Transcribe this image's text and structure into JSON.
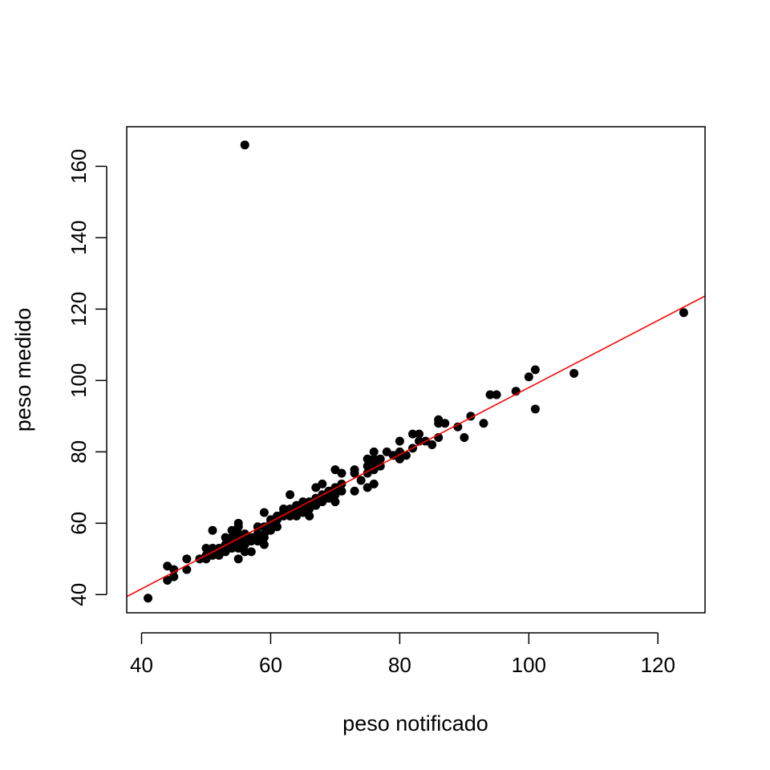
{
  "chart_data": {
    "type": "scatter",
    "title": "",
    "xlabel": "peso notificado",
    "ylabel": "peso medido",
    "xlim": [
      37.7,
      127.3
    ],
    "ylim": [
      34.9,
      171.1
    ],
    "xticks": [
      40,
      60,
      80,
      100,
      120
    ],
    "yticks": [
      40,
      60,
      80,
      100,
      120,
      140,
      160
    ],
    "grid": false,
    "legend": "none",
    "point_color": "#000000",
    "fit_line": {
      "color": "#ff0000",
      "intercept": 4.0,
      "slope": 0.94
    },
    "points": [
      [
        41,
        39
      ],
      [
        44,
        44
      ],
      [
        44,
        48
      ],
      [
        45,
        45
      ],
      [
        45,
        47
      ],
      [
        47,
        47
      ],
      [
        47,
        50
      ],
      [
        49,
        50
      ],
      [
        50,
        50
      ],
      [
        50,
        51
      ],
      [
        50,
        53
      ],
      [
        51,
        51
      ],
      [
        51,
        52
      ],
      [
        51,
        53
      ],
      [
        51,
        58
      ],
      [
        52,
        51
      ],
      [
        52,
        52
      ],
      [
        52,
        53
      ],
      [
        53,
        52
      ],
      [
        53,
        53
      ],
      [
        53,
        54
      ],
      [
        53,
        56
      ],
      [
        54,
        53
      ],
      [
        54,
        54
      ],
      [
        54,
        55
      ],
      [
        54,
        56
      ],
      [
        54,
        58
      ],
      [
        55,
        50
      ],
      [
        55,
        53
      ],
      [
        55,
        55
      ],
      [
        55,
        56
      ],
      [
        55,
        57
      ],
      [
        55,
        59
      ],
      [
        55,
        60
      ],
      [
        56,
        52
      ],
      [
        56,
        54
      ],
      [
        56,
        56
      ],
      [
        56,
        57
      ],
      [
        56,
        166
      ],
      [
        57,
        52
      ],
      [
        57,
        55
      ],
      [
        57,
        56
      ],
      [
        58,
        55
      ],
      [
        58,
        57
      ],
      [
        58,
        59
      ],
      [
        59,
        54
      ],
      [
        59,
        56
      ],
      [
        59,
        57
      ],
      [
        59,
        59
      ],
      [
        59,
        63
      ],
      [
        60,
        58
      ],
      [
        60,
        60
      ],
      [
        60,
        61
      ],
      [
        61,
        59
      ],
      [
        61,
        61
      ],
      [
        61,
        62
      ],
      [
        62,
        62
      ],
      [
        62,
        63
      ],
      [
        62,
        64
      ],
      [
        63,
        62
      ],
      [
        63,
        64
      ],
      [
        63,
        68
      ],
      [
        64,
        62
      ],
      [
        64,
        63
      ],
      [
        64,
        65
      ],
      [
        65,
        63
      ],
      [
        65,
        64
      ],
      [
        65,
        66
      ],
      [
        66,
        62
      ],
      [
        66,
        64
      ],
      [
        66,
        65
      ],
      [
        66,
        66
      ],
      [
        67,
        65
      ],
      [
        67,
        67
      ],
      [
        67,
        70
      ],
      [
        68,
        66
      ],
      [
        68,
        68
      ],
      [
        68,
        71
      ],
      [
        69,
        67
      ],
      [
        69,
        69
      ],
      [
        70,
        66
      ],
      [
        70,
        68
      ],
      [
        70,
        70
      ],
      [
        70,
        75
      ],
      [
        71,
        69
      ],
      [
        71,
        71
      ],
      [
        71,
        74
      ],
      [
        73,
        69
      ],
      [
        73,
        74
      ],
      [
        73,
        75
      ],
      [
        74,
        72
      ],
      [
        75,
        70
      ],
      [
        75,
        74
      ],
      [
        75,
        76
      ],
      [
        75,
        78
      ],
      [
        76,
        71
      ],
      [
        76,
        75
      ],
      [
        76,
        77
      ],
      [
        76,
        78
      ],
      [
        76,
        80
      ],
      [
        77,
        76
      ],
      [
        77,
        78
      ],
      [
        78,
        80
      ],
      [
        79,
        79
      ],
      [
        80,
        78
      ],
      [
        80,
        80
      ],
      [
        80,
        83
      ],
      [
        81,
        79
      ],
      [
        82,
        81
      ],
      [
        82,
        85
      ],
      [
        83,
        83
      ],
      [
        83,
        85
      ],
      [
        84,
        83
      ],
      [
        85,
        82
      ],
      [
        86,
        84
      ],
      [
        86,
        88
      ],
      [
        86,
        89
      ],
      [
        87,
        88
      ],
      [
        89,
        87
      ],
      [
        90,
        84
      ],
      [
        91,
        90
      ],
      [
        93,
        88
      ],
      [
        94,
        96
      ],
      [
        95,
        96
      ],
      [
        98,
        97
      ],
      [
        100,
        101
      ],
      [
        101,
        92
      ],
      [
        101,
        103
      ],
      [
        107,
        102
      ],
      [
        124,
        119
      ]
    ]
  }
}
